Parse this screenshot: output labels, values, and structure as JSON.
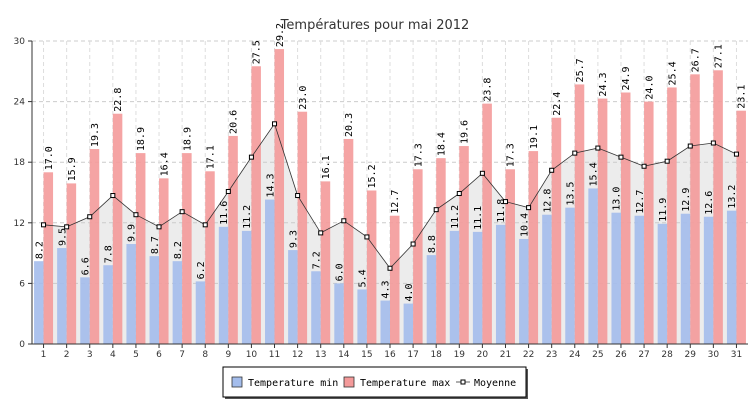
{
  "chart_data": {
    "type": "bar",
    "title": "Températures pour mai 2012",
    "xlabel": "",
    "ylabel": "",
    "ylim": [
      0,
      30
    ],
    "yticks": [
      0,
      6,
      12,
      18,
      24,
      30
    ],
    "grid": true,
    "legend_position": "bottom",
    "categories": [
      "1",
      "2",
      "3",
      "4",
      "5",
      "6",
      "7",
      "8",
      "9",
      "10",
      "11",
      "12",
      "13",
      "14",
      "15",
      "16",
      "17",
      "18",
      "19",
      "20",
      "21",
      "22",
      "23",
      "24",
      "25",
      "26",
      "27",
      "28",
      "29",
      "30",
      "31"
    ],
    "series": [
      {
        "name": "Temperature min",
        "kind": "bar",
        "color": "#a4bdec",
        "values": [
          8.2,
          9.5,
          6.6,
          7.8,
          9.9,
          8.7,
          8.2,
          6.2,
          11.6,
          11.2,
          14.3,
          9.3,
          7.2,
          6.0,
          5.4,
          4.3,
          4.0,
          8.8,
          11.2,
          11.1,
          11.8,
          10.4,
          12.8,
          13.5,
          15.4,
          13.0,
          12.7,
          11.9,
          12.9,
          12.6,
          13.2
        ]
      },
      {
        "name": "Temperature max",
        "kind": "bar",
        "color": "#f49a9a",
        "values": [
          17.0,
          15.9,
          19.3,
          22.8,
          18.9,
          16.4,
          18.9,
          17.1,
          20.6,
          27.5,
          29.2,
          23.0,
          16.1,
          20.3,
          15.2,
          12.7,
          17.3,
          18.4,
          19.6,
          23.8,
          17.3,
          19.1,
          22.4,
          25.7,
          24.3,
          24.9,
          24.0,
          25.4,
          26.7,
          27.1,
          23.1
        ]
      },
      {
        "name": "Moyenne",
        "kind": "line",
        "color": "#333333",
        "values": [
          11.8,
          11.6,
          12.6,
          14.7,
          12.8,
          11.6,
          13.1,
          11.8,
          15.1,
          18.5,
          21.8,
          14.7,
          11.0,
          12.2,
          10.6,
          7.5,
          9.9,
          13.3,
          14.9,
          16.9,
          14.1,
          13.5,
          17.2,
          18.9,
          19.4,
          18.5,
          17.6,
          18.1,
          19.6,
          19.9,
          18.8
        ]
      }
    ]
  }
}
